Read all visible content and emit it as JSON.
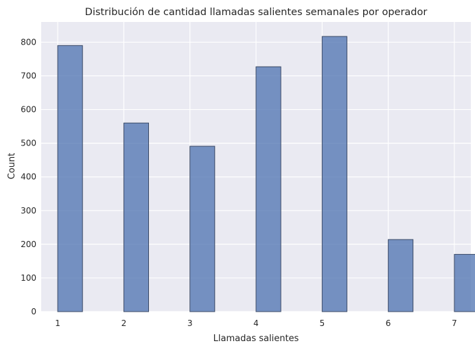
{
  "chart_data": {
    "type": "bar",
    "title": "Distribución de cantidad llamadas salientes semanales por operador",
    "xlabel": "Llamadas salientes",
    "ylabel": "Count",
    "x": [
      1,
      2,
      3,
      4,
      5,
      6,
      7
    ],
    "values": [
      790,
      560,
      491,
      727,
      817,
      214,
      170
    ],
    "xlim": [
      0.75,
      7.25
    ],
    "ylim": [
      0,
      860
    ],
    "xticks": [
      1,
      2,
      3,
      4,
      5,
      6,
      7
    ],
    "yticks": [
      0,
      100,
      200,
      300,
      400,
      500,
      600,
      700,
      800
    ],
    "bar_width": 0.375,
    "grid": true,
    "colors": {
      "bar": "#4c72b0",
      "background": "#eaeaf2",
      "grid": "#ffffff"
    }
  }
}
